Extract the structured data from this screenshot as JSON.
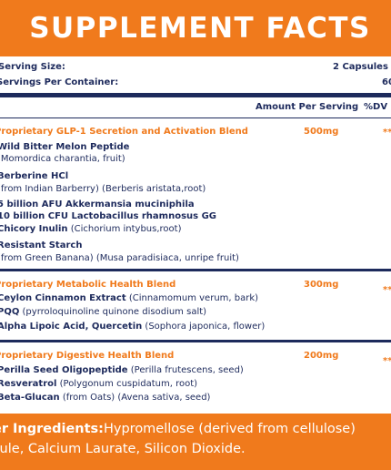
{
  "header": {
    "title": "SUPPLEMENT FACTS"
  },
  "serving": {
    "size_label": "Serving Size:",
    "size_value": "2 Capsules",
    "per_container_label": "Servings Per Container:",
    "per_container_value": "60"
  },
  "columns": {
    "amount": "Amount Per Serving",
    "dv": "%DV"
  },
  "blends": [
    {
      "name": "Proprietary GLP-1 Secretion and Activation Blend",
      "amount": "500mg",
      "dv": "**",
      "items": [
        {
          "name": "Wild Bitter Melon Peptide",
          "source": ""
        },
        {
          "name": "",
          "source": "(Momordica charantia, fruit)"
        },
        {
          "name": "Berberine HCl",
          "source": ""
        },
        {
          "name": "",
          "source": "(from Indian Barberry) (Berberis aristata,root)"
        },
        {
          "name": "5 billion AFU Akkermansia muciniphila",
          "source": ""
        },
        {
          "name": "10 billion CFU Lactobacillus rhamnosus GG",
          "source": ""
        },
        {
          "name": "Chicory Inulin",
          "source": " (Cichorium intybus,root)"
        },
        {
          "name": "Resistant Starch",
          "source": ""
        },
        {
          "name": "",
          "source": "(from Green Banana) (Musa paradisiaca, unripe fruit)"
        }
      ]
    },
    {
      "name": "Proprietary Metabolic Health Blend",
      "amount": "300mg",
      "dv": "**",
      "items": [
        {
          "name": "Ceylon Cinnamon Extract",
          "source": " (Cinnamomum verum, bark)"
        },
        {
          "name": "PQQ",
          "source": " (pyrroloquinoline quinone disodium salt)"
        },
        {
          "name": "Alpha Lipoic Acid, Quercetin",
          "source": " (Sophora japonica, flower)"
        }
      ]
    },
    {
      "name": "Proprietary Digestive Health Blend",
      "amount": "200mg",
      "dv": "**",
      "items": [
        {
          "name": "Perilla Seed Oligopeptide",
          "source": " (Perilla frutescens, seed)"
        },
        {
          "name": "Resveratrol",
          "source": " (Polygonum cuspidatum, root)"
        },
        {
          "name": "Beta-Glucan",
          "source": " (from Oats) (Avena sativa, seed)"
        }
      ]
    }
  ],
  "footer": {
    "label": "er Ingredients:",
    "line1": "Hypromellose (derived from cellulose)",
    "line2": "sule, Calcium Laurate, Silicon Dioxide."
  },
  "colors": {
    "orange": "#f07a1c",
    "navy": "#1d2a5c",
    "white": "#ffffff"
  }
}
